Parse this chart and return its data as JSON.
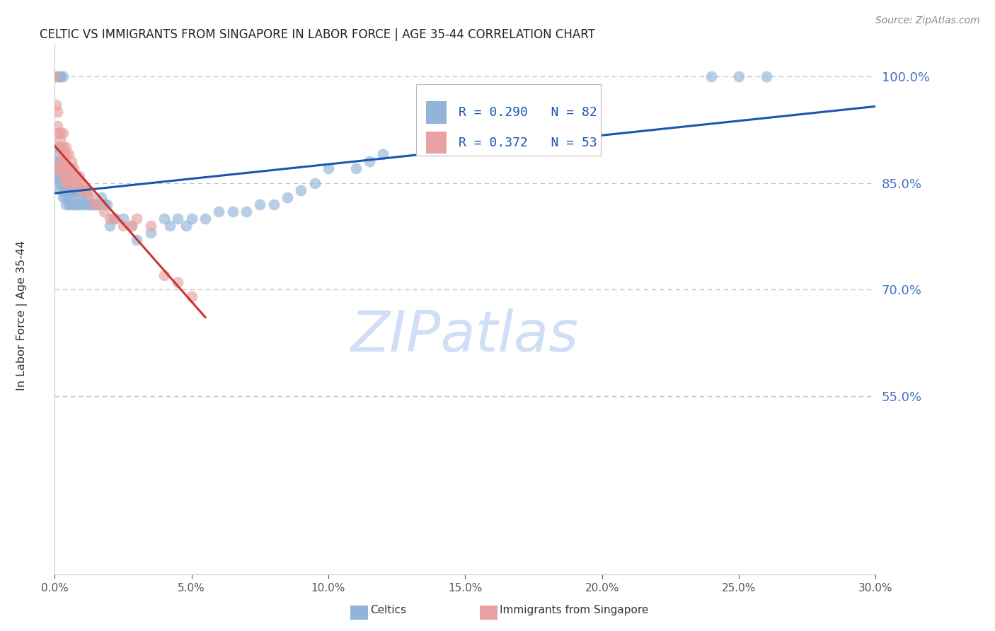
{
  "title": "CELTIC VS IMMIGRANTS FROM SINGAPORE IN LABOR FORCE | AGE 35-44 CORRELATION CHART",
  "source": "Source: ZipAtlas.com",
  "ylabel": "In Labor Force | Age 35-44",
  "xlim": [
    0.0,
    0.3
  ],
  "ylim": [
    0.3,
    1.045
  ],
  "yticks": [
    0.55,
    0.7,
    0.85,
    1.0
  ],
  "ytick_labels": [
    "55.0%",
    "70.0%",
    "85.0%",
    "100.0%"
  ],
  "xticks": [
    0.0,
    0.05,
    0.1,
    0.15,
    0.2,
    0.25,
    0.3
  ],
  "xtick_labels": [
    "0.0%",
    "5.0%",
    "10.0%",
    "15.0%",
    "20.0%",
    "25.0%",
    "30.0%"
  ],
  "blue_R": 0.29,
  "blue_N": 82,
  "pink_R": 0.372,
  "pink_N": 53,
  "blue_color": "#92b4d8",
  "pink_color": "#e8a0a0",
  "blue_line_color": "#1a56b0",
  "pink_line_color": "#cc3333",
  "grid_color": "#b8c4d4",
  "title_color": "#222222",
  "axis_label_color": "#333333",
  "tick_color_right": "#4472c4",
  "tick_color_bottom": "#555555",
  "watermark_color": "#d0dff5",
  "legend_label_blue": "Celtics",
  "legend_label_pink": "Immigrants from Singapore",
  "blue_scatter_x": [
    0.0005,
    0.0005,
    0.001,
    0.001,
    0.001,
    0.001,
    0.001,
    0.001,
    0.001,
    0.002,
    0.002,
    0.002,
    0.002,
    0.002,
    0.002,
    0.002,
    0.002,
    0.003,
    0.003,
    0.003,
    0.003,
    0.003,
    0.003,
    0.004,
    0.004,
    0.004,
    0.004,
    0.005,
    0.005,
    0.005,
    0.005,
    0.006,
    0.006,
    0.006,
    0.007,
    0.007,
    0.008,
    0.008,
    0.009,
    0.009,
    0.01,
    0.01,
    0.011,
    0.011,
    0.012,
    0.012,
    0.013,
    0.014,
    0.015,
    0.016,
    0.017,
    0.018,
    0.019,
    0.02,
    0.021,
    0.022,
    0.025,
    0.028,
    0.03,
    0.035,
    0.04,
    0.042,
    0.045,
    0.048,
    0.05,
    0.055,
    0.06,
    0.065,
    0.07,
    0.075,
    0.08,
    0.085,
    0.09,
    0.095,
    0.1,
    0.11,
    0.115,
    0.12,
    0.19,
    0.24,
    0.25,
    0.26
  ],
  "blue_scatter_y": [
    0.86,
    0.87,
    0.85,
    0.86,
    0.87,
    0.88,
    0.89,
    0.9,
    1.0,
    0.84,
    0.85,
    0.86,
    0.87,
    0.88,
    0.9,
    1.0,
    1.0,
    0.83,
    0.84,
    0.85,
    0.86,
    0.87,
    1.0,
    0.82,
    0.83,
    0.84,
    0.85,
    0.82,
    0.83,
    0.84,
    0.85,
    0.82,
    0.83,
    0.84,
    0.82,
    0.84,
    0.82,
    0.84,
    0.82,
    0.83,
    0.82,
    0.83,
    0.82,
    0.84,
    0.82,
    0.83,
    0.82,
    0.82,
    0.82,
    0.82,
    0.83,
    0.82,
    0.82,
    0.79,
    0.8,
    0.8,
    0.8,
    0.79,
    0.77,
    0.78,
    0.8,
    0.79,
    0.8,
    0.79,
    0.8,
    0.8,
    0.81,
    0.81,
    0.81,
    0.82,
    0.82,
    0.83,
    0.84,
    0.85,
    0.87,
    0.87,
    0.88,
    0.89,
    0.96,
    1.0,
    1.0,
    1.0
  ],
  "pink_scatter_x": [
    0.0003,
    0.0005,
    0.001,
    0.001,
    0.001,
    0.001,
    0.002,
    0.002,
    0.002,
    0.002,
    0.002,
    0.003,
    0.003,
    0.003,
    0.003,
    0.003,
    0.003,
    0.004,
    0.004,
    0.004,
    0.004,
    0.004,
    0.005,
    0.005,
    0.005,
    0.005,
    0.006,
    0.006,
    0.006,
    0.007,
    0.007,
    0.007,
    0.008,
    0.008,
    0.009,
    0.009,
    0.01,
    0.01,
    0.011,
    0.012,
    0.013,
    0.015,
    0.016,
    0.018,
    0.02,
    0.022,
    0.025,
    0.028,
    0.03,
    0.035,
    0.04,
    0.045,
    0.05
  ],
  "pink_scatter_y": [
    1.0,
    0.96,
    0.95,
    0.93,
    0.92,
    0.87,
    0.92,
    0.91,
    0.9,
    0.88,
    0.87,
    0.92,
    0.9,
    0.89,
    0.88,
    0.87,
    0.86,
    0.9,
    0.89,
    0.87,
    0.86,
    0.85,
    0.89,
    0.87,
    0.86,
    0.85,
    0.88,
    0.87,
    0.86,
    0.87,
    0.86,
    0.85,
    0.86,
    0.85,
    0.86,
    0.85,
    0.85,
    0.84,
    0.84,
    0.84,
    0.83,
    0.82,
    0.82,
    0.81,
    0.8,
    0.8,
    0.79,
    0.79,
    0.8,
    0.79,
    0.72,
    0.71,
    0.69
  ]
}
